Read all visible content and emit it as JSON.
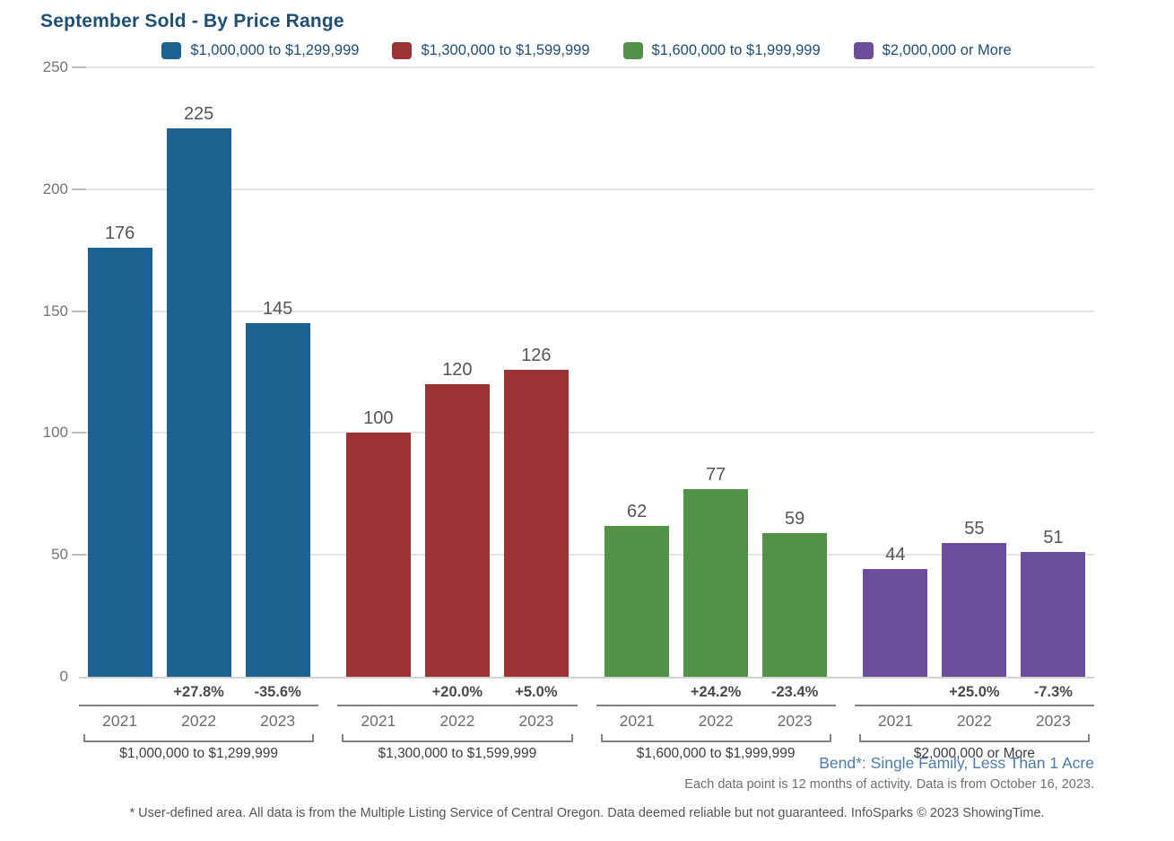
{
  "chart_data": {
    "type": "bar",
    "title": "September Sold - By Price Range",
    "categories": [
      "2021",
      "2022",
      "2023"
    ],
    "y_ticks": [
      0,
      50,
      100,
      150,
      200,
      250
    ],
    "ylim": [
      0,
      250
    ],
    "grid": true,
    "legend_position": "top",
    "groups": [
      {
        "label": "$1,000,000 to $1,299,999",
        "color": "#1a6290",
        "values": [
          176,
          225,
          145
        ],
        "pct_changes": [
          "",
          "+27.8%",
          "-35.6%"
        ]
      },
      {
        "label": "$1,300,000 to $1,599,999",
        "color": "#9d3234",
        "values": [
          100,
          120,
          126
        ],
        "pct_changes": [
          "",
          "+20.0%",
          "+5.0%"
        ]
      },
      {
        "label": "$1,600,000 to $1,999,999",
        "color": "#519247",
        "values": [
          62,
          77,
          59
        ],
        "pct_changes": [
          "",
          "+24.2%",
          "-23.4%"
        ]
      },
      {
        "label": "$2,000,000 or More",
        "color": "#6b4d9c",
        "values": [
          44,
          55,
          51
        ],
        "pct_changes": [
          "",
          "+25.0%",
          "-7.3%"
        ]
      }
    ]
  },
  "footer": {
    "location_line": "Bend*: Single Family, Less Than 1 Acre",
    "activity_line": "Each data point is 12 months of activity. Data is from October 16, 2023.",
    "disclaimer_line": "* User-defined area. All data is from the Multiple Listing Service of Central Oregon. Data deemed reliable but not guaranteed. InfoSparks © 2023 ShowingTime."
  },
  "colors": {
    "title_text": "#1d5076",
    "legend_text": "#1d4e78",
    "location_text": "#4a7cb0",
    "gridline": "#e4e4e4",
    "axis_line": "#d2d2d2",
    "separator_line": "#828282",
    "value_label": "#555555",
    "pct_label": "#4a4a4a",
    "year_label": "#6e6e6e",
    "group_label": "#3d3d3d",
    "y_tick_label": "#757575"
  }
}
